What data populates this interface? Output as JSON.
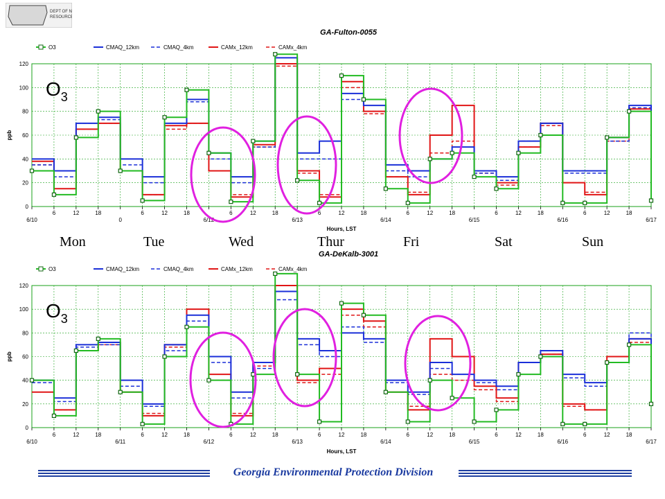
{
  "logo": {
    "lines": [
      "DEPT OF NATURAL",
      "RESOURCES"
    ]
  },
  "day_labels": [
    "Mon",
    "Tue",
    "Wed",
    "Thur",
    "Fri",
    "Sat",
    "Sun"
  ],
  "footer": "Georgia Environmental Protection Division",
  "colors": {
    "O3": "#22bb22",
    "CMAQ_12km": "#1a2fd8",
    "CMAQ_4km": "#1a2fd8",
    "CAMx_12km": "#e01515",
    "CAMx_4km": "#e01515",
    "highlight": "#e020e0",
    "grid": "#18a018"
  },
  "chart_data": [
    {
      "type": "line",
      "title": "GA-Fulton-0055",
      "annotation": "O3",
      "xlabel": "Hours, LST",
      "ylabel": "ppb",
      "ylim": [
        0,
        120
      ],
      "yticks": [
        0,
        20,
        40,
        60,
        80,
        100,
        120
      ],
      "xlim": [
        0,
        168
      ],
      "xtick_labels": [
        "6/10",
        "6",
        "12",
        "18",
        "0",
        "6",
        "12",
        "18",
        "6/12",
        "6",
        "12",
        "18",
        "6/13",
        "6",
        "12",
        "18",
        "6/14",
        "6",
        "12",
        "18",
        "6/15",
        "6",
        "12",
        "18",
        "6/16",
        "6",
        "12",
        "18",
        "6/17"
      ],
      "legend": [
        "O3",
        "CMAQ_12km",
        "CMAQ_4km",
        "CAMx_12km",
        "CAMx_4km"
      ],
      "x": [
        0,
        6,
        12,
        18,
        24,
        30,
        36,
        42,
        48,
        54,
        60,
        66,
        72,
        78,
        84,
        90,
        96,
        102,
        108,
        114,
        120,
        126,
        132,
        138,
        144,
        150,
        156,
        162,
        168
      ],
      "series": [
        {
          "name": "O3",
          "values": [
            30,
            10,
            58,
            80,
            30,
            5,
            75,
            98,
            45,
            4,
            55,
            128,
            22,
            3,
            110,
            90,
            15,
            3,
            40,
            45,
            25,
            15,
            45,
            60,
            3,
            3,
            58,
            80,
            5
          ]
        },
        {
          "name": "CMAQ_12km",
          "values": [
            40,
            30,
            70,
            75,
            40,
            25,
            70,
            90,
            45,
            25,
            55,
            125,
            45,
            55,
            95,
            85,
            35,
            30,
            40,
            50,
            30,
            25,
            55,
            70,
            30,
            30,
            58,
            85,
            35
          ]
        },
        {
          "name": "CMAQ_4km",
          "values": [
            35,
            25,
            70,
            73,
            35,
            20,
            68,
            88,
            40,
            20,
            50,
            120,
            40,
            40,
            90,
            80,
            30,
            25,
            40,
            45,
            28,
            22,
            55,
            70,
            28,
            28,
            55,
            83,
            32
          ]
        },
        {
          "name": "CAMx_12km",
          "values": [
            38,
            15,
            65,
            70,
            30,
            10,
            68,
            70,
            30,
            8,
            52,
            120,
            30,
            8,
            105,
            80,
            25,
            10,
            60,
            85,
            30,
            20,
            50,
            70,
            20,
            10,
            58,
            82,
            35
          ]
        },
        {
          "name": "CAMx_4km",
          "values": [
            35,
            15,
            65,
            70,
            30,
            10,
            65,
            70,
            30,
            10,
            50,
            118,
            28,
            10,
            100,
            78,
            25,
            12,
            45,
            55,
            28,
            18,
            50,
            68,
            20,
            12,
            55,
            80,
            35
          ]
        }
      ]
    },
    {
      "type": "line",
      "title": "GA-DeKalb-3001",
      "annotation": "O3",
      "xlabel": "Hours, LST",
      "ylabel": "ppb",
      "ylim": [
        0,
        120
      ],
      "yticks": [
        0,
        20,
        40,
        60,
        80,
        100,
        120
      ],
      "xlim": [
        0,
        168
      ],
      "xtick_labels": [
        "6/10",
        "6",
        "12",
        "18",
        "6/11",
        "6",
        "12",
        "18",
        "6/12",
        "6",
        "12",
        "18",
        "6/13",
        "6",
        "12",
        "18",
        "6/14",
        "6",
        "12",
        "18",
        "6/15",
        "6",
        "12",
        "18",
        "6/16",
        "6",
        "12",
        "18",
        "6/17"
      ],
      "legend": [
        "O3",
        "CMAQ_12km",
        "CMAQ_4km",
        "CAMx_12km",
        "CAMx_4km"
      ],
      "x": [
        0,
        6,
        12,
        18,
        24,
        30,
        36,
        42,
        48,
        54,
        60,
        66,
        72,
        78,
        84,
        90,
        96,
        102,
        108,
        114,
        120,
        126,
        132,
        138,
        144,
        150,
        156,
        162,
        168
      ],
      "series": [
        {
          "name": "O3",
          "values": [
            40,
            10,
            65,
            75,
            30,
            3,
            60,
            85,
            40,
            3,
            45,
            130,
            45,
            5,
            105,
            95,
            30,
            5,
            40,
            25,
            5,
            15,
            45,
            60,
            3,
            3,
            55,
            70,
            20
          ]
        },
        {
          "name": "CMAQ_12km",
          "values": [
            40,
            25,
            70,
            72,
            40,
            20,
            70,
            95,
            60,
            30,
            55,
            115,
            75,
            65,
            80,
            75,
            40,
            30,
            55,
            45,
            40,
            35,
            55,
            65,
            45,
            38,
            55,
            75,
            40
          ]
        },
        {
          "name": "CMAQ_4km",
          "values": [
            38,
            22,
            68,
            70,
            35,
            18,
            65,
            90,
            55,
            25,
            50,
            108,
            70,
            60,
            85,
            72,
            38,
            28,
            50,
            45,
            38,
            32,
            55,
            65,
            42,
            35,
            55,
            80,
            38
          ]
        },
        {
          "name": "CAMx_12km",
          "values": [
            30,
            15,
            65,
            72,
            30,
            10,
            70,
            100,
            45,
            10,
            55,
            120,
            40,
            50,
            100,
            90,
            30,
            15,
            75,
            60,
            35,
            25,
            55,
            62,
            20,
            15,
            60,
            75,
            25
          ]
        },
        {
          "name": "CAMx_4km",
          "values": [
            30,
            15,
            65,
            70,
            30,
            12,
            68,
            95,
            40,
            12,
            52,
            115,
            38,
            45,
            95,
            85,
            30,
            18,
            45,
            40,
            32,
            22,
            55,
            62,
            18,
            15,
            55,
            72,
            25
          ]
        }
      ]
    }
  ]
}
